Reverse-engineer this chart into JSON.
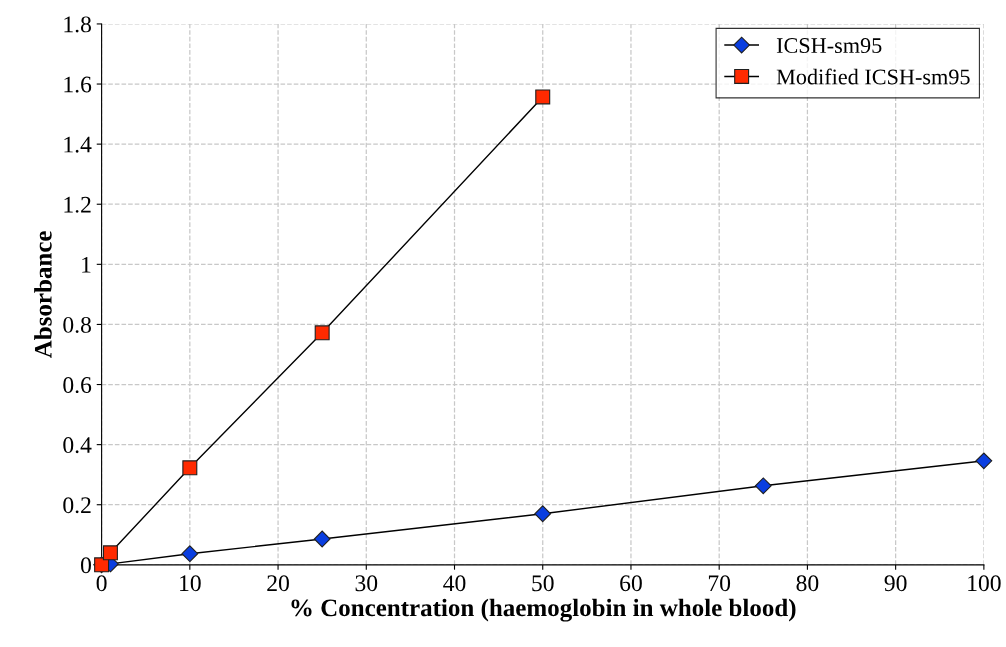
{
  "chart_data": {
    "type": "line",
    "xlabel": "% Concentration (haemoglobin in whole blood)",
    "ylabel": "Absorbance",
    "series": [
      {
        "name": "ICSH-sm95",
        "color": "#0a3ee0",
        "marker": "diamond",
        "x": [
          0,
          1,
          10,
          25,
          50,
          75,
          100
        ],
        "values": [
          0,
          0.003,
          0.037,
          0.086,
          0.17,
          0.263,
          0.346
        ]
      },
      {
        "name": "Modified ICSH-sm95",
        "color": "#ff2a00",
        "marker": "square",
        "x": [
          0,
          1,
          10,
          25,
          50
        ],
        "values": [
          0,
          0.04,
          0.323,
          0.772,
          1.557
        ]
      }
    ],
    "xlim": [
      0,
      100
    ],
    "xticks": [
      0,
      10,
      20,
      30,
      40,
      50,
      60,
      70,
      80,
      90,
      100
    ],
    "ylim": [
      0,
      1.8
    ],
    "yticks": [
      0,
      0.2,
      0.4,
      0.6,
      0.8,
      1,
      1.2,
      1.4,
      1.6,
      1.8
    ],
    "grid": true,
    "legend": "top right",
    "line_style": "solid"
  }
}
